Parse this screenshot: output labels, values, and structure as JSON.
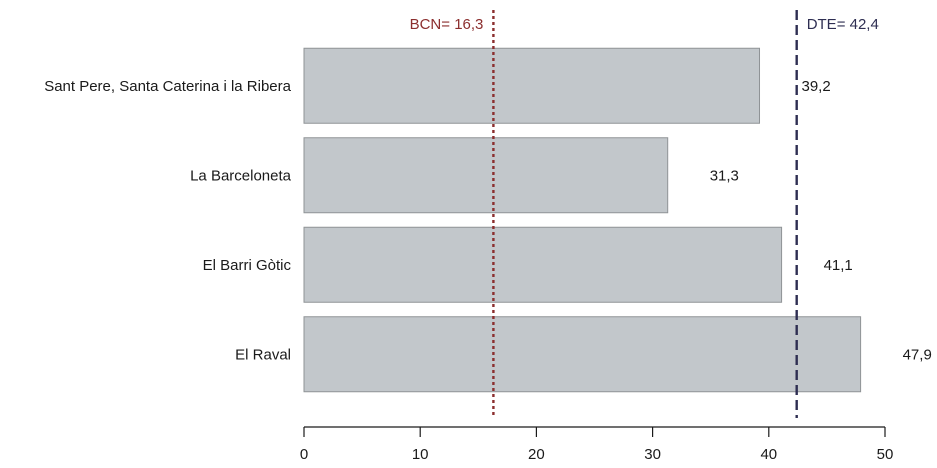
{
  "chart_data": {
    "type": "bar",
    "orientation": "horizontal",
    "categories": [
      "Sant Pere, Santa Caterina i la Ribera",
      "La Barceloneta",
      "El Barri Gòtic",
      "El Raval"
    ],
    "values": [
      39.2,
      31.3,
      41.1,
      47.9
    ],
    "value_labels": [
      "39,2",
      "31,3",
      "41,1",
      "47,9"
    ],
    "xlim": [
      0,
      50
    ],
    "x_ticks": [
      0,
      10,
      20,
      30,
      40,
      50
    ],
    "x_tick_labels": [
      "0",
      "10",
      "20",
      "30",
      "40",
      "50"
    ],
    "title": "",
    "xlabel": "",
    "ylabel": "",
    "grid": false,
    "legend": "none",
    "reference_lines": [
      {
        "value": 16.3,
        "label": "BCN= 16,3",
        "style": "dotted",
        "color": "#8b2e2e"
      },
      {
        "value": 42.4,
        "label": "DTE= 42,4",
        "style": "dashed",
        "color": "#2e2e52"
      }
    ],
    "colors": {
      "bar_fill": "#c2c7cb",
      "bar_stroke": "#8f9396",
      "axis": "#1a1a1a",
      "text": "#1a1a1a"
    }
  }
}
